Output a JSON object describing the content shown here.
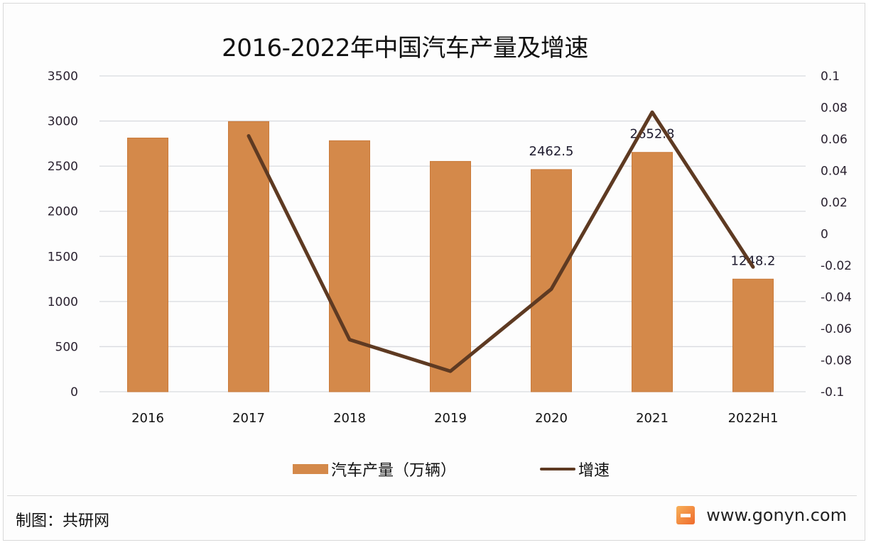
{
  "title": "2016-2022年中国汽车产量及增速",
  "chart_data": {
    "type": "bar+line",
    "title": "2016-2022年中国汽车产量及增速",
    "categories": [
      "2016",
      "2017",
      "2018",
      "2019",
      "2020",
      "2021",
      "2022H1"
    ],
    "series": [
      {
        "name": "汽车产量（万辆）",
        "type": "bar",
        "axis": "left",
        "color": "#D4894A",
        "values": [
          2811.9,
          2994.2,
          2781.9,
          2552.8,
          2462.5,
          2652.8,
          1248.2
        ]
      },
      {
        "name": "增速",
        "type": "line",
        "axis": "right",
        "color": "#5E3A22",
        "values": [
          null,
          0.062,
          -0.067,
          -0.087,
          -0.035,
          0.077,
          -0.021
        ]
      }
    ],
    "data_labels": [
      {
        "category": "2020",
        "text": "2462.5"
      },
      {
        "category": "2021",
        "text": "2652.8"
      },
      {
        "category": "2022H1",
        "text": "1248.2"
      }
    ],
    "y_left": {
      "min": 0,
      "max": 3500,
      "ticks": [
        "0",
        "500",
        "1000",
        "1500",
        "2000",
        "2500",
        "3000",
        "3500"
      ]
    },
    "y_right": {
      "min": -0.1,
      "max": 0.1,
      "ticks": [
        "-0.1",
        "-0.08",
        "-0.06",
        "-0.04",
        "-0.02",
        "0",
        "0.02",
        "0.04",
        "0.06",
        "0.08",
        "0.1"
      ]
    },
    "grid": true,
    "legend_position": "bottom",
    "xlabel": "",
    "ylabel": ""
  },
  "legend": {
    "bar_label": "汽车产量（万辆）",
    "line_label": "增速"
  },
  "footer": {
    "credit": "制图：共研网",
    "website": "www.gonyn.com"
  },
  "watermark": "共研网"
}
